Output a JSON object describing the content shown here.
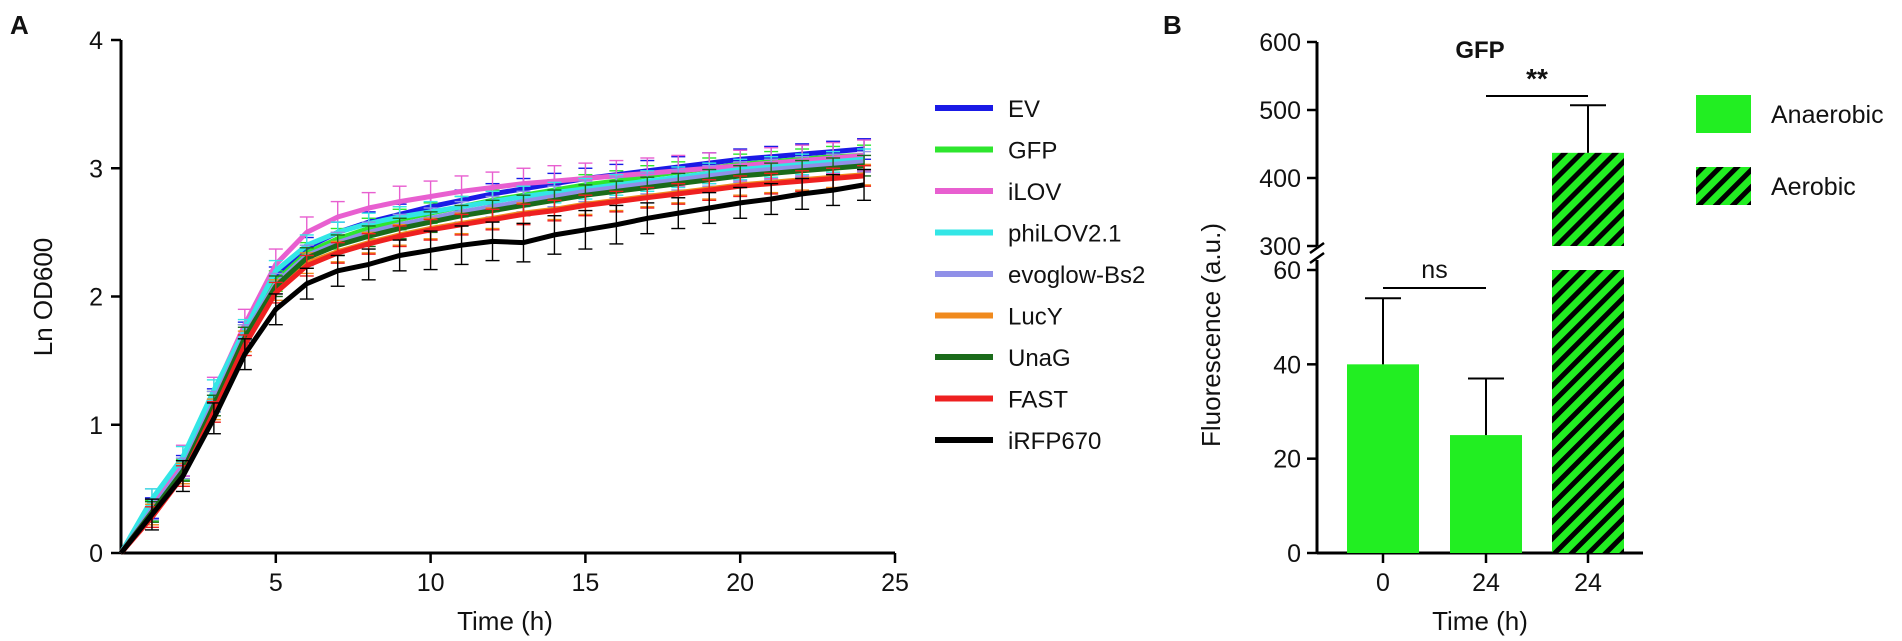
{
  "chart_data": [
    {
      "panel_label": "A",
      "type": "line",
      "title": "",
      "xlabel": "Time (h)",
      "ylabel": "Ln OD600",
      "xlim": [
        0,
        25
      ],
      "ylim": [
        0,
        4
      ],
      "xticks": [
        5,
        10,
        15,
        20,
        25
      ],
      "yticks": [
        0,
        1,
        2,
        3,
        4
      ],
      "grid": false,
      "legend_position": "right",
      "x": [
        0,
        1,
        2,
        3,
        4,
        5,
        6,
        7,
        8,
        9,
        10,
        11,
        12,
        13,
        14,
        15,
        16,
        17,
        18,
        19,
        20,
        21,
        22,
        23,
        24
      ],
      "series": [
        {
          "name": "EV",
          "color": "#1a1ae6",
          "values": [
            0,
            0.35,
            0.68,
            1.2,
            1.72,
            2.15,
            2.38,
            2.5,
            2.58,
            2.64,
            2.7,
            2.75,
            2.8,
            2.84,
            2.88,
            2.92,
            2.95,
            2.98,
            3.01,
            3.04,
            3.07,
            3.09,
            3.11,
            3.13,
            3.15
          ],
          "err": [
            0,
            0.08,
            0.08,
            0.08,
            0.08,
            0.08,
            0.08,
            0.08,
            0.08,
            0.08,
            0.08,
            0.08,
            0.08,
            0.08,
            0.08,
            0.08,
            0.08,
            0.08,
            0.08,
            0.08,
            0.08,
            0.08,
            0.08,
            0.08,
            0.08
          ]
        },
        {
          "name": "GFP",
          "color": "#2ee62e",
          "values": [
            0,
            0.33,
            0.65,
            1.18,
            1.7,
            2.12,
            2.34,
            2.45,
            2.53,
            2.6,
            2.65,
            2.7,
            2.75,
            2.79,
            2.83,
            2.87,
            2.9,
            2.94,
            2.97,
            3.0,
            3.03,
            3.05,
            3.07,
            3.09,
            3.1
          ],
          "err": [
            0,
            0.08,
            0.08,
            0.08,
            0.08,
            0.08,
            0.08,
            0.08,
            0.08,
            0.08,
            0.08,
            0.08,
            0.08,
            0.08,
            0.08,
            0.08,
            0.08,
            0.08,
            0.08,
            0.08,
            0.08,
            0.08,
            0.08,
            0.08,
            0.08
          ]
        },
        {
          "name": "iLOV",
          "color": "#e85fd0",
          "values": [
            0,
            0.38,
            0.72,
            1.25,
            1.78,
            2.25,
            2.5,
            2.62,
            2.69,
            2.74,
            2.78,
            2.82,
            2.85,
            2.88,
            2.9,
            2.92,
            2.94,
            2.96,
            2.98,
            3.0,
            3.02,
            3.04,
            3.06,
            3.08,
            3.1
          ],
          "err": [
            0,
            0.12,
            0.12,
            0.12,
            0.12,
            0.12,
            0.12,
            0.12,
            0.12,
            0.12,
            0.12,
            0.12,
            0.12,
            0.12,
            0.12,
            0.12,
            0.12,
            0.12,
            0.12,
            0.12,
            0.12,
            0.12,
            0.12,
            0.12,
            0.12
          ]
        },
        {
          "name": "phiLOV2.1",
          "color": "#33e6e6",
          "values": [
            0,
            0.42,
            0.75,
            1.27,
            1.74,
            2.2,
            2.4,
            2.5,
            2.57,
            2.62,
            2.66,
            2.7,
            2.74,
            2.78,
            2.81,
            2.84,
            2.87,
            2.9,
            2.93,
            2.96,
            2.99,
            3.01,
            3.03,
            3.05,
            3.07
          ],
          "err": [
            0,
            0.08,
            0.08,
            0.08,
            0.08,
            0.08,
            0.08,
            0.08,
            0.08,
            0.08,
            0.08,
            0.08,
            0.08,
            0.08,
            0.08,
            0.08,
            0.08,
            0.08,
            0.08,
            0.08,
            0.08,
            0.08,
            0.08,
            0.08,
            0.08
          ]
        },
        {
          "name": "evoglow-Bs2",
          "color": "#9090e8",
          "values": [
            0,
            0.34,
            0.66,
            1.18,
            1.7,
            2.1,
            2.32,
            2.42,
            2.5,
            2.56,
            2.61,
            2.66,
            2.7,
            2.74,
            2.78,
            2.82,
            2.85,
            2.88,
            2.91,
            2.94,
            2.97,
            2.99,
            3.01,
            3.03,
            3.05
          ],
          "err": [
            0,
            0.08,
            0.08,
            0.08,
            0.08,
            0.08,
            0.08,
            0.08,
            0.08,
            0.08,
            0.08,
            0.08,
            0.08,
            0.08,
            0.08,
            0.08,
            0.08,
            0.08,
            0.08,
            0.08,
            0.08,
            0.08,
            0.08,
            0.08,
            0.08
          ]
        },
        {
          "name": "LucY",
          "color": "#f08a1e",
          "values": [
            0,
            0.3,
            0.62,
            1.12,
            1.65,
            2.05,
            2.26,
            2.35,
            2.42,
            2.48,
            2.53,
            2.57,
            2.61,
            2.65,
            2.68,
            2.72,
            2.75,
            2.78,
            2.81,
            2.84,
            2.87,
            2.89,
            2.91,
            2.93,
            2.95
          ],
          "err": [
            0,
            0.08,
            0.08,
            0.08,
            0.08,
            0.08,
            0.08,
            0.08,
            0.08,
            0.08,
            0.08,
            0.08,
            0.08,
            0.08,
            0.08,
            0.08,
            0.08,
            0.08,
            0.08,
            0.08,
            0.08,
            0.08,
            0.08,
            0.08,
            0.08
          ]
        },
        {
          "name": "UnaG",
          "color": "#1a6b1a",
          "values": [
            0,
            0.32,
            0.64,
            1.15,
            1.68,
            2.08,
            2.3,
            2.4,
            2.47,
            2.53,
            2.58,
            2.63,
            2.67,
            2.71,
            2.75,
            2.79,
            2.82,
            2.85,
            2.88,
            2.91,
            2.94,
            2.96,
            2.98,
            3.0,
            3.02
          ],
          "err": [
            0,
            0.08,
            0.08,
            0.08,
            0.08,
            0.08,
            0.08,
            0.08,
            0.08,
            0.08,
            0.08,
            0.08,
            0.08,
            0.08,
            0.08,
            0.08,
            0.08,
            0.08,
            0.08,
            0.08,
            0.08,
            0.08,
            0.08,
            0.08,
            0.08
          ]
        },
        {
          "name": "FAST",
          "color": "#ee2020",
          "values": [
            0,
            0.28,
            0.6,
            1.1,
            1.62,
            2.03,
            2.24,
            2.34,
            2.41,
            2.47,
            2.52,
            2.56,
            2.6,
            2.64,
            2.67,
            2.71,
            2.74,
            2.77,
            2.8,
            2.83,
            2.86,
            2.88,
            2.9,
            2.92,
            2.94
          ],
          "err": [
            0,
            0.08,
            0.08,
            0.08,
            0.08,
            0.08,
            0.08,
            0.08,
            0.08,
            0.08,
            0.08,
            0.08,
            0.08,
            0.08,
            0.08,
            0.08,
            0.08,
            0.08,
            0.08,
            0.08,
            0.08,
            0.08,
            0.08,
            0.08,
            0.08
          ]
        },
        {
          "name": "iRFP670",
          "color": "#000000",
          "values": [
            0,
            0.3,
            0.6,
            1.05,
            1.55,
            1.9,
            2.1,
            2.2,
            2.25,
            2.32,
            2.36,
            2.4,
            2.43,
            2.42,
            2.48,
            2.52,
            2.56,
            2.61,
            2.65,
            2.69,
            2.73,
            2.76,
            2.8,
            2.83,
            2.87
          ],
          "err": [
            0,
            0.12,
            0.12,
            0.12,
            0.12,
            0.12,
            0.12,
            0.12,
            0.12,
            0.12,
            0.15,
            0.15,
            0.15,
            0.15,
            0.15,
            0.15,
            0.15,
            0.12,
            0.12,
            0.12,
            0.12,
            0.12,
            0.12,
            0.12,
            0.12
          ]
        }
      ]
    },
    {
      "panel_label": "B",
      "type": "bar",
      "title": "GFP",
      "xlabel": "Time (h)",
      "ylabel": "Fluorescence (a.u.)",
      "broken_axis": true,
      "ylim_lower": [
        0,
        60
      ],
      "ylim_upper": [
        300,
        600
      ],
      "yticks_lower": [
        0,
        20,
        40,
        60
      ],
      "yticks_upper": [
        300,
        400,
        500,
        600
      ],
      "categories": [
        "0",
        "24",
        "24"
      ],
      "bars": [
        {
          "label": "0",
          "condition": "Anaerobic",
          "value": 40,
          "err": 14
        },
        {
          "label": "24",
          "condition": "Anaerobic",
          "value": 25,
          "err": 12
        },
        {
          "label": "24",
          "condition": "Aerobic",
          "value": 437,
          "err": 70
        }
      ],
      "legend": [
        {
          "name": "Anaerobic",
          "pattern": "solid",
          "color": "#22ee22"
        },
        {
          "name": "Aerobic",
          "pattern": "hatched",
          "color": "#22ee22"
        }
      ],
      "annotations": [
        {
          "text": "ns",
          "between": [
            0,
            1
          ]
        },
        {
          "text": "**",
          "between": [
            1,
            2
          ]
        }
      ]
    }
  ]
}
